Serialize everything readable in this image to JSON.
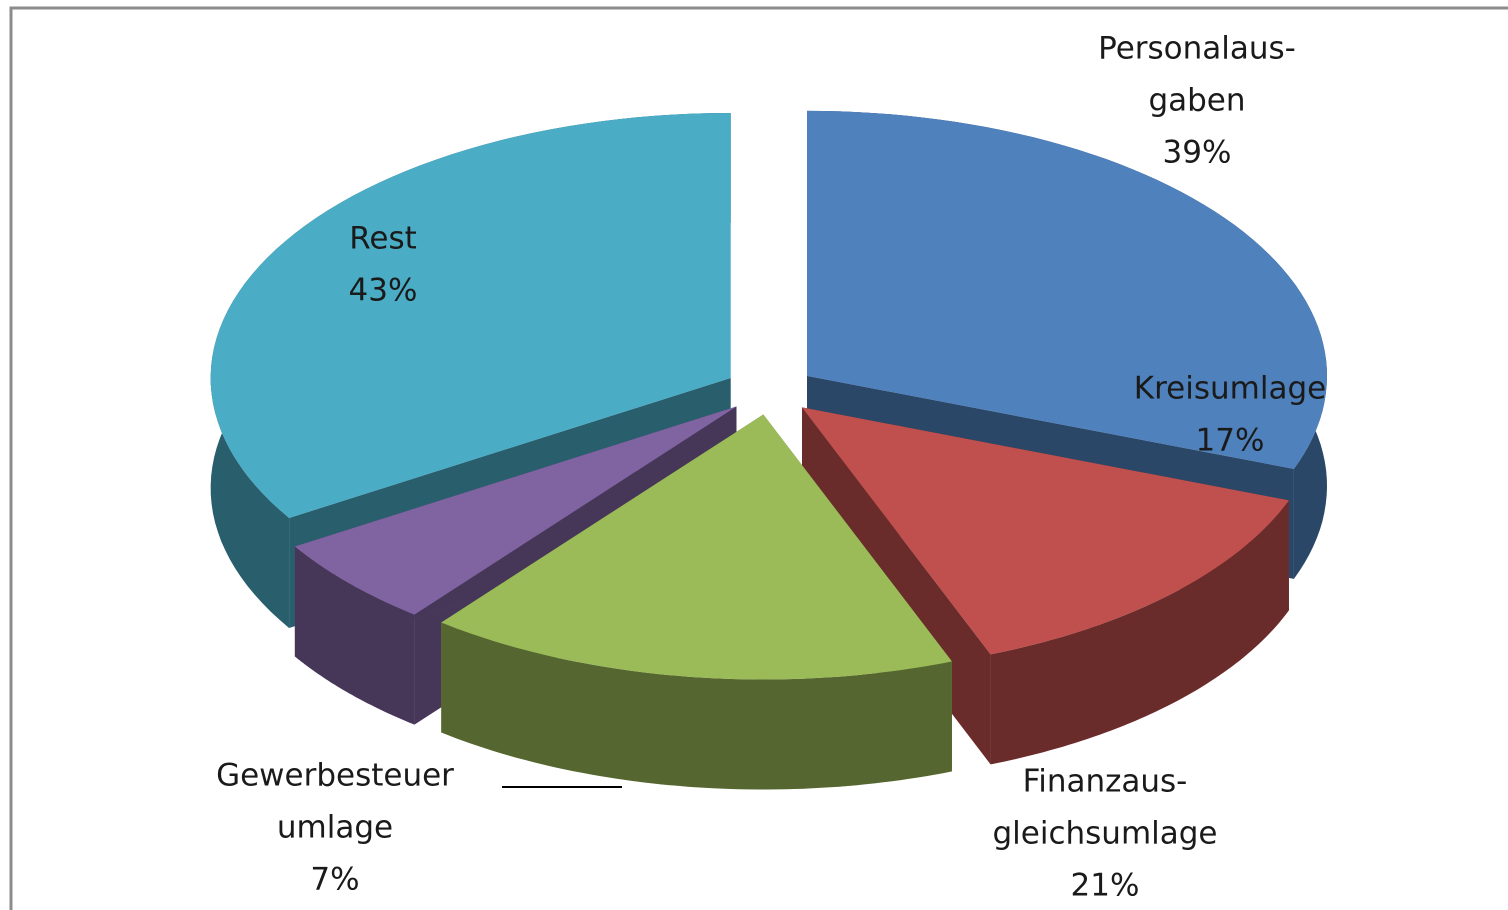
{
  "chart_data": {
    "type": "pie3d",
    "categories": [
      [
        "Personalaus-",
        "gaben"
      ],
      [
        "Kreisumlage"
      ],
      [
        "Finanzaus-",
        "gleichsumlage"
      ],
      [
        "Gewerbesteuer",
        "umlage"
      ],
      [
        "Rest"
      ]
    ],
    "values": [
      39,
      17,
      21,
      7,
      43
    ],
    "value_labels": [
      "39%",
      "17%",
      "21%",
      "7%",
      "43%"
    ],
    "colors": [
      "#4f81bd",
      "#c0504d",
      "#9bbb59",
      "#8064a2",
      "#4bacc6"
    ]
  }
}
